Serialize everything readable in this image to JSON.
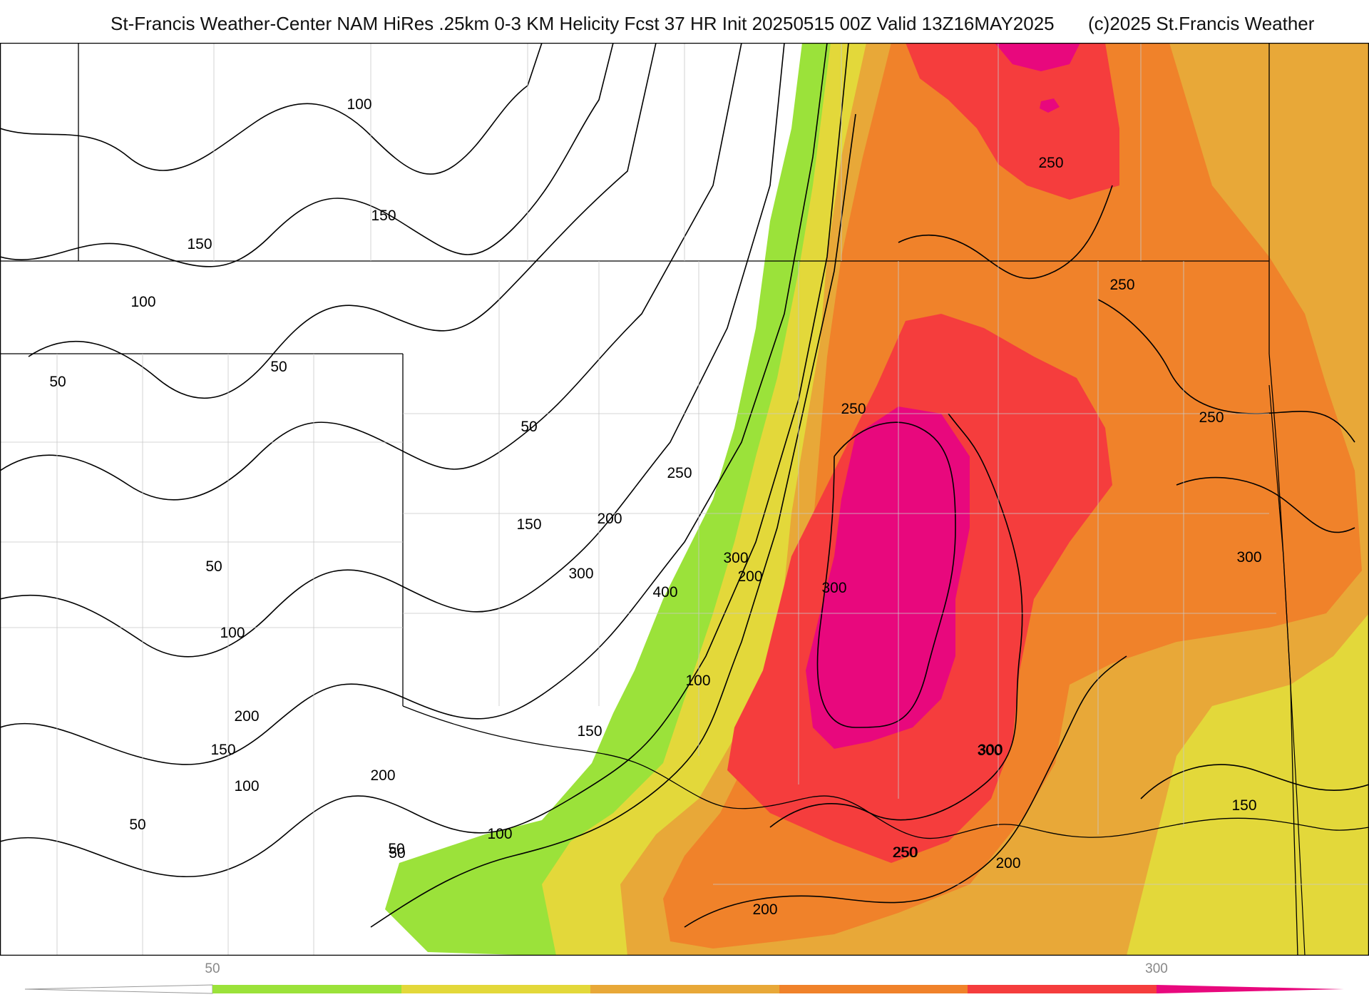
{
  "header": {
    "title": "St-Francis Weather-Center NAM HiRes .25km 0-3 KM Helicity Fcst 37 HR Init 20250515 00Z  Valid 13Z16MAY2025",
    "copyright": "(c)2025 St.Francis Weather"
  },
  "map": {
    "field": "0-3 KM Helicity",
    "contour_labels": [
      "100",
      "150",
      "150",
      "100",
      "50",
      "50",
      "50",
      "50",
      "50",
      "100",
      "200",
      "150",
      "100",
      "50",
      "200",
      "150",
      "200",
      "300",
      "150",
      "250",
      "400",
      "300",
      "200",
      "100",
      "50",
      "100",
      "200",
      "250",
      "250",
      "300",
      "300",
      "250",
      "250",
      "250",
      "250",
      "300",
      "300",
      "200",
      "150"
    ],
    "colors": {
      "green": "#9be23a",
      "yellow": "#e3d83a",
      "light_orange": "#e8a838",
      "orange": "#f0822a",
      "red": "#f53d3d",
      "magenta": "#e8087d",
      "border": "#000000",
      "county": "#c8c8c8"
    }
  },
  "colorbar": {
    "labels": [
      "50",
      "300"
    ],
    "segments": [
      "#9be23a",
      "#e3d83a",
      "#e8a838",
      "#f0822a",
      "#f53d3d",
      "#e8087d"
    ]
  }
}
